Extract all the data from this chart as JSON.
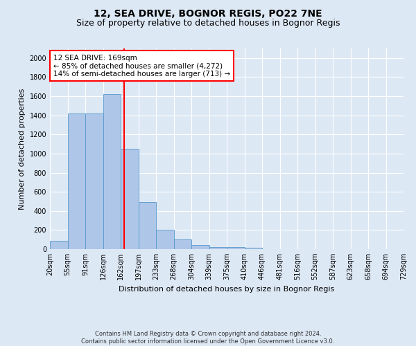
{
  "title": "12, SEA DRIVE, BOGNOR REGIS, PO22 7NE",
  "subtitle": "Size of property relative to detached houses in Bognor Regis",
  "xlabel": "Distribution of detached houses by size in Bognor Regis",
  "ylabel": "Number of detached properties",
  "bin_labels": [
    "20sqm",
    "55sqm",
    "91sqm",
    "126sqm",
    "162sqm",
    "197sqm",
    "233sqm",
    "268sqm",
    "304sqm",
    "339sqm",
    "375sqm",
    "410sqm",
    "446sqm",
    "481sqm",
    "516sqm",
    "552sqm",
    "587sqm",
    "623sqm",
    "658sqm",
    "694sqm",
    "729sqm"
  ],
  "bar_values": [
    85,
    1420,
    1420,
    1620,
    1050,
    490,
    205,
    105,
    40,
    25,
    20,
    15,
    0,
    0,
    0,
    0,
    0,
    0,
    0,
    0
  ],
  "bar_color": "#aec6e8",
  "bar_edge_color": "#5599cc",
  "background_color": "#dde8f5",
  "vline_color": "red",
  "annotation_text": "12 SEA DRIVE: 169sqm\n← 85% of detached houses are smaller (4,272)\n14% of semi-detached houses are larger (713) →",
  "annotation_box_color": "white",
  "annotation_box_edge": "red",
  "ylim": [
    0,
    2100
  ],
  "yticks": [
    0,
    200,
    400,
    600,
    800,
    1000,
    1200,
    1400,
    1600,
    1800,
    2000
  ],
  "footer": "Contains HM Land Registry data © Crown copyright and database right 2024.\nContains public sector information licensed under the Open Government Licence v3.0.",
  "title_fontsize": 10,
  "subtitle_fontsize": 9,
  "xlabel_fontsize": 8,
  "ylabel_fontsize": 8,
  "tick_fontsize": 7,
  "annotation_fontsize": 7.5,
  "footer_fontsize": 6
}
